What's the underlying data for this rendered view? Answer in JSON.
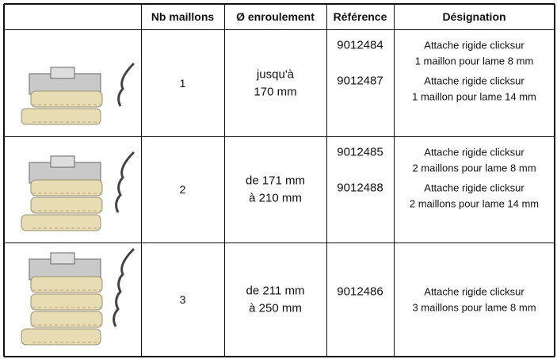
{
  "table": {
    "header": [
      "Nb maillons",
      "Ø enroulement",
      "Référence",
      "Désignation"
    ],
    "rows": [
      {
        "nb": "1",
        "enroulement": [
          "jusqu'à",
          "170 mm"
        ],
        "items": [
          {
            "reference": "9012484",
            "designation": [
              "Attache rigide clicksur",
              "1 maillon pour lame 8 mm"
            ]
          },
          {
            "reference": "9012487",
            "designation": [
              "Attache rigide clicksur",
              "1 maillon pour lame 14 mm"
            ]
          }
        ]
      },
      {
        "nb": "2",
        "enroulement": [
          "de 171 mm",
          "à 210 mm"
        ],
        "items": [
          {
            "reference": "9012485",
            "designation": [
              "Attache rigide clicksur",
              "2 maillons pour lame 8 mm"
            ]
          },
          {
            "reference": "9012488",
            "designation": [
              "Attache rigide clicksur",
              "2 maillons pour lame 14 mm"
            ]
          }
        ]
      },
      {
        "nb": "3",
        "enroulement": [
          "de 211 mm",
          "à 250 mm"
        ],
        "items": [
          {
            "reference": "9012486",
            "designation": [
              "Attache rigide clicksur",
              "3 maillons pour lame 8 mm"
            ]
          }
        ]
      }
    ]
  }
}
